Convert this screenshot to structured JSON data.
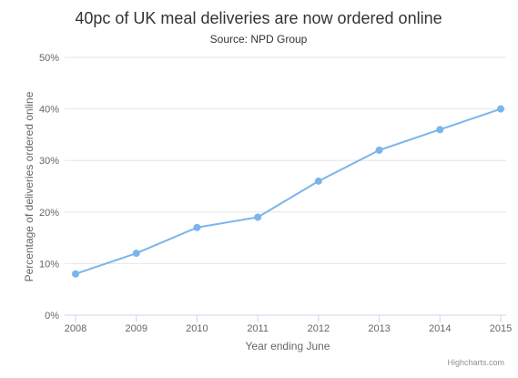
{
  "chart_data": {
    "type": "line",
    "title": "40pc of UK meal deliveries are now ordered online",
    "subtitle": "Source: NPD Group",
    "xlabel": "Year ending June",
    "ylabel": "Percentage of deliveries ordered online",
    "categories": [
      "2008",
      "2009",
      "2010",
      "2011",
      "2012",
      "2013",
      "2014",
      "2015"
    ],
    "series": [
      {
        "values": [
          8,
          12,
          17,
          19,
          26,
          32,
          36,
          40
        ]
      }
    ],
    "ylim": [
      0,
      50
    ],
    "yticks": [
      0,
      10,
      20,
      30,
      40,
      50
    ],
    "ytick_labels": [
      "0%",
      "10%",
      "20%",
      "30%",
      "40%",
      "50%"
    ],
    "grid": true,
    "legend": "none",
    "line_color": "#7cb5ec"
  },
  "credits": "Highcharts.com"
}
